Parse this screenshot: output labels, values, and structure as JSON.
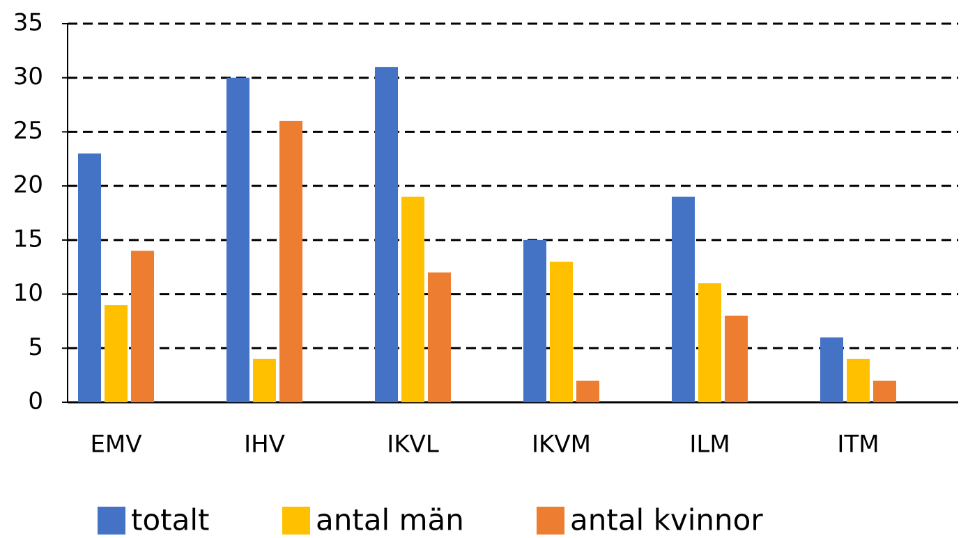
{
  "chart_data": {
    "type": "bar",
    "categories": [
      "EMV",
      "IHV",
      "IKVL",
      "IKVM",
      "ILM",
      "ITM"
    ],
    "series": [
      {
        "name": "totalt",
        "color": "#4472c4",
        "values": [
          23,
          30,
          31,
          15,
          19,
          6
        ]
      },
      {
        "name": "antal män",
        "color": "#ffc000",
        "values": [
          9,
          4,
          19,
          13,
          11,
          4
        ]
      },
      {
        "name": "antal kvinnor",
        "color": "#ed7d31",
        "values": [
          14,
          26,
          12,
          2,
          8,
          2
        ]
      }
    ],
    "ylim": [
      0,
      35
    ],
    "yticks": [
      0,
      5,
      10,
      15,
      20,
      25,
      30,
      35
    ],
    "grid": true,
    "legend": "bottom"
  }
}
